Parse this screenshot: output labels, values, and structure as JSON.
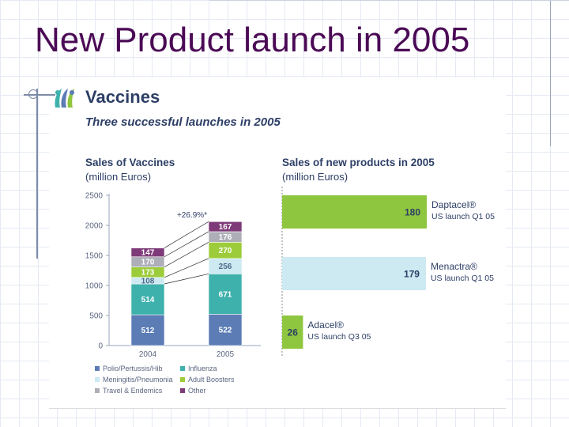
{
  "slide": {
    "title": "New Product launch in 2005"
  },
  "section": {
    "heading": "Vaccines",
    "subheading": "Three successful launches in 2005"
  },
  "legend": [
    {
      "name": "Polio/Pertussis/Hib",
      "color": "#5b7cb5"
    },
    {
      "name": "Influenza",
      "color": "#3fb1ad"
    },
    {
      "name": "Meningitis/Pneumonia",
      "color": "#cde9f1"
    },
    {
      "name": "Adult Boosters",
      "color": "#9dcc3a"
    },
    {
      "name": "Travel & Endemics",
      "color": "#aeaeb8"
    },
    {
      "name": "Other",
      "color": "#7e3a78"
    }
  ],
  "chart_data": [
    {
      "type": "bar",
      "stacked": true,
      "title": "Sales of Vaccines",
      "units": "(million Euros)",
      "categories": [
        "2004",
        "2005"
      ],
      "ylim": [
        0,
        2500
      ],
      "yticks": [
        "0",
        "500",
        "1000",
        "1500",
        "2000",
        "2500"
      ],
      "annotation": "+26.9%*",
      "series": [
        {
          "name": "Polio/Pertussis/Hib",
          "values": [
            512,
            522
          ],
          "labels": [
            "512",
            "522"
          ],
          "color": "#5b7cb5"
        },
        {
          "name": "Influenza",
          "values": [
            514,
            671
          ],
          "labels": [
            "514",
            "671"
          ],
          "color": "#3fb1ad"
        },
        {
          "name": "Meningitis/Pneumonia",
          "values": [
            108,
            256
          ],
          "labels": [
            "108",
            "256"
          ],
          "color": "#cde9f1"
        },
        {
          "name": "Adult Boosters",
          "values": [
            173,
            270
          ],
          "labels": [
            "173",
            "270"
          ],
          "color": "#9dcc3a"
        },
        {
          "name": "Travel & Endemics",
          "values": [
            170,
            176
          ],
          "labels": [
            "170",
            "176"
          ],
          "color": "#aeaeb8"
        },
        {
          "name": "Other",
          "values": [
            147,
            167
          ],
          "labels": [
            "147",
            "167"
          ],
          "color": "#7e3a78"
        }
      ]
    },
    {
      "type": "bar",
      "orientation": "horizontal",
      "title": "Sales of new products in 2005",
      "units": "(million Euros)",
      "xlim": [
        0,
        180
      ],
      "items": [
        {
          "product": "Daptacel®",
          "launch": "US launch Q1 05",
          "value": 180,
          "label": "180",
          "color": "#8fc63f"
        },
        {
          "product": "Menactra®",
          "launch": "US launch Q1 05",
          "value": 179,
          "label": "179",
          "color": "#cde9f1"
        },
        {
          "product": "Adacel®",
          "launch": "US launch Q3 05",
          "value": 26,
          "label": "26",
          "color": "#8fc63f"
        }
      ]
    }
  ]
}
